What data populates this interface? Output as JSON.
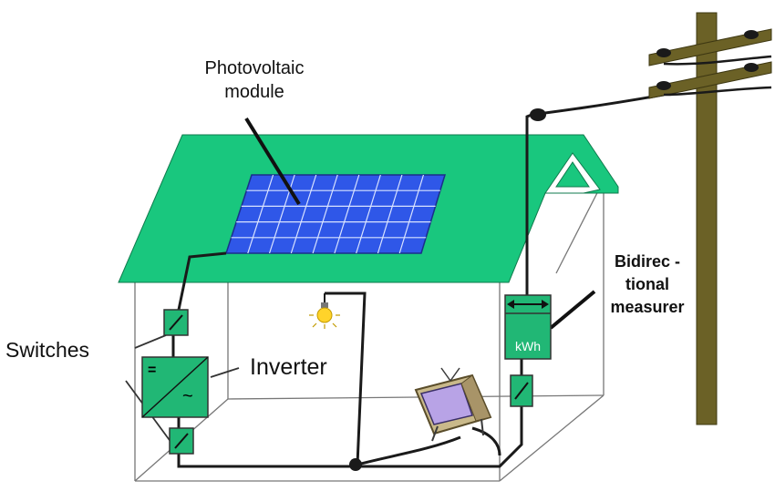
{
  "labels": {
    "pv_line1": "Photovoltaic",
    "pv_line2": "module",
    "switches": "Switches",
    "inverter": "Inverter",
    "bidir_line1": "Bidirec -",
    "bidir_line2": "tional",
    "bidir_line3": "measurer",
    "meter_unit": "kWh",
    "inverter_dc": "=",
    "inverter_ac": "~"
  },
  "colors": {
    "roof": "#19c77e",
    "device": "#21b775",
    "panel": "#2f57e8",
    "pole": "#6b6126",
    "wire": "#1a1a1a",
    "bulb": "#ffd32a",
    "tv_body": "#c9b98a",
    "tv_screen": "#b8a3e6"
  }
}
